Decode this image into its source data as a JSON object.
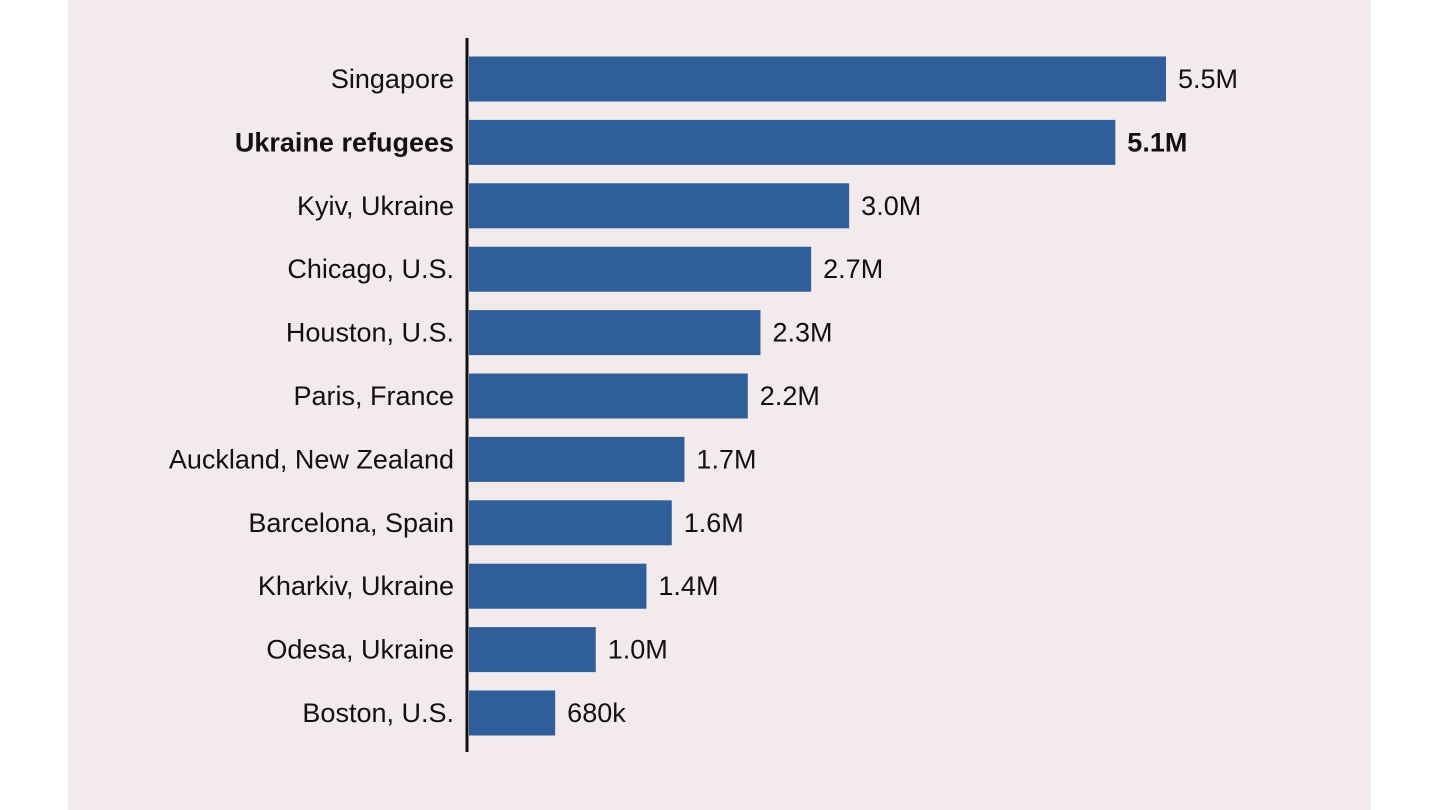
{
  "chart_data": {
    "type": "bar",
    "orientation": "horizontal",
    "categories": [
      "Singapore",
      "Ukraine refugees",
      "Kyiv, Ukraine",
      "Chicago, U.S.",
      "Houston, U.S.",
      "Paris, France",
      "Auckland, New Zealand",
      "Barcelona, Spain",
      "Kharkiv, Ukraine",
      "Odesa, Ukraine",
      "Boston, U.S."
    ],
    "values": [
      5500000,
      5100000,
      3000000,
      2700000,
      2300000,
      2200000,
      1700000,
      1600000,
      1400000,
      1000000,
      680000
    ],
    "value_labels": [
      "5.5M",
      "5.1M",
      "3.0M",
      "2.7M",
      "2.3M",
      "2.2M",
      "1.7M",
      "1.6M",
      "1.4M",
      "1.0M",
      "680k"
    ],
    "highlight": "Ukraine refugees",
    "title": "",
    "xlabel": "",
    "ylabel": "",
    "grid": false,
    "bar_color": "#2f5f9b",
    "background_color": "#f2eaeb"
  }
}
